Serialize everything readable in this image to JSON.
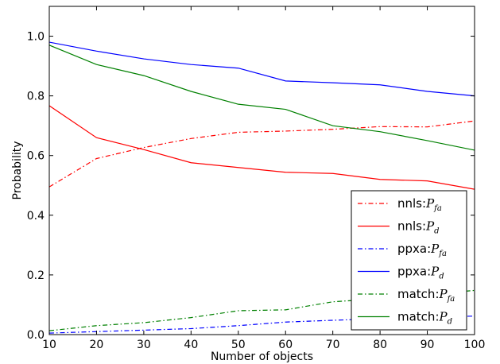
{
  "chart_data": {
    "type": "line",
    "xlabel": "Number of objects",
    "ylabel": "Probability",
    "xlim": [
      10,
      100
    ],
    "ylim": [
      0,
      1.1
    ],
    "x": [
      10,
      20,
      30,
      40,
      50,
      60,
      70,
      80,
      90,
      100
    ],
    "xticks": [
      10,
      20,
      30,
      40,
      50,
      60,
      70,
      80,
      90,
      100
    ],
    "yticks": [
      0.0,
      0.2,
      0.4,
      0.6,
      0.8,
      1.0
    ],
    "ytick_labels": [
      "0.0",
      "0.2",
      "0.4",
      "0.6",
      "0.8",
      "1.0"
    ],
    "grid": false,
    "legend_position": "lower-right",
    "series": [
      {
        "name": "nnls:P_fa",
        "label_text": "nnls:",
        "math_base": "P",
        "math_sub": "fa",
        "color": "#ff0000",
        "dash": "dashdot",
        "values": [
          0.495,
          0.59,
          0.627,
          0.657,
          0.678,
          0.682,
          0.688,
          0.697,
          0.696,
          0.716
        ]
      },
      {
        "name": "nnls:P_d",
        "label_text": "nnls:",
        "math_base": "P",
        "math_sub": "d",
        "color": "#ff0000",
        "dash": "solid",
        "values": [
          0.767,
          0.66,
          0.62,
          0.576,
          0.56,
          0.544,
          0.54,
          0.52,
          0.515,
          0.487
        ]
      },
      {
        "name": "ppxa:P_fa",
        "label_text": "ppxa:",
        "math_base": "P",
        "math_sub": "fa",
        "color": "#0000ff",
        "dash": "dashdot",
        "values": [
          0.005,
          0.01,
          0.015,
          0.02,
          0.03,
          0.042,
          0.048,
          0.053,
          0.058,
          0.062
        ]
      },
      {
        "name": "ppxa:P_d",
        "label_text": "ppxa:",
        "math_base": "P",
        "math_sub": "d",
        "color": "#0000ff",
        "dash": "solid",
        "values": [
          0.98,
          0.95,
          0.924,
          0.905,
          0.893,
          0.85,
          0.844,
          0.837,
          0.815,
          0.8
        ]
      },
      {
        "name": "match:P_fa",
        "label_text": "match:",
        "math_base": "P",
        "math_sub": "fa",
        "color": "#008000",
        "dash": "dashdot",
        "values": [
          0.013,
          0.03,
          0.04,
          0.057,
          0.08,
          0.083,
          0.11,
          0.12,
          0.135,
          0.148
        ]
      },
      {
        "name": "match:P_d",
        "label_text": "match:",
        "math_base": "P",
        "math_sub": "d",
        "color": "#008000",
        "dash": "solid",
        "values": [
          0.97,
          0.905,
          0.868,
          0.815,
          0.772,
          0.755,
          0.7,
          0.68,
          0.65,
          0.618
        ]
      }
    ]
  }
}
